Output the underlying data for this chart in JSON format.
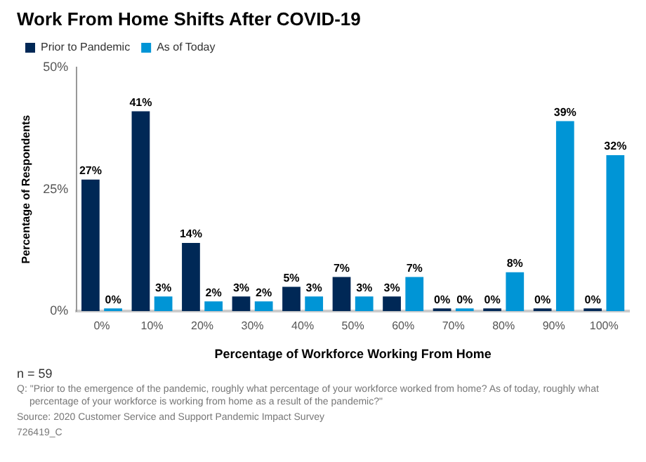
{
  "chart_data": {
    "type": "bar",
    "title": "Work From Home Shifts After COVID-19",
    "xlabel": "Percentage of Workforce Working From Home",
    "ylabel": "Percentage of Respondents",
    "categories": [
      "0%",
      "10%",
      "20%",
      "30%",
      "40%",
      "50%",
      "60%",
      "70%",
      "80%",
      "90%",
      "100%"
    ],
    "series": [
      {
        "name": "Prior to Pandemic",
        "color": "#002856",
        "values": [
          27,
          41,
          14,
          3,
          5,
          7,
          3,
          0,
          0,
          0,
          0
        ],
        "value_labels": [
          "27%",
          "41%",
          "14%",
          "3%",
          "5%",
          "7%",
          "3%",
          "0%",
          "0%",
          "0%",
          "0%"
        ]
      },
      {
        "name": "As of Today",
        "color": "#0095d6",
        "values": [
          0,
          3,
          2,
          2,
          3,
          3,
          7,
          0,
          8,
          39,
          32
        ],
        "value_labels": [
          "0%",
          "3%",
          "2%",
          "2%",
          "3%",
          "3%",
          "7%",
          "0%",
          "8%",
          "39%",
          "32%"
        ]
      }
    ],
    "ylim": [
      0,
      50
    ],
    "yticks": [
      {
        "value": 0,
        "label": "0%"
      },
      {
        "value": 25,
        "label": "25%"
      },
      {
        "value": 50,
        "label": "50%"
      }
    ],
    "grid": false,
    "legend": "top left",
    "annotations": [
      "n = 59",
      "Q: \"Prior to the emergence of the pandemic, roughly what percentage of your workforce worked from home? As of today, roughly what percentage of your workforce is working from home as a result of the pandemic?\"",
      "Source: 2020 Customer Service and Support Pandemic Impact Survey",
      "726419_C"
    ]
  }
}
